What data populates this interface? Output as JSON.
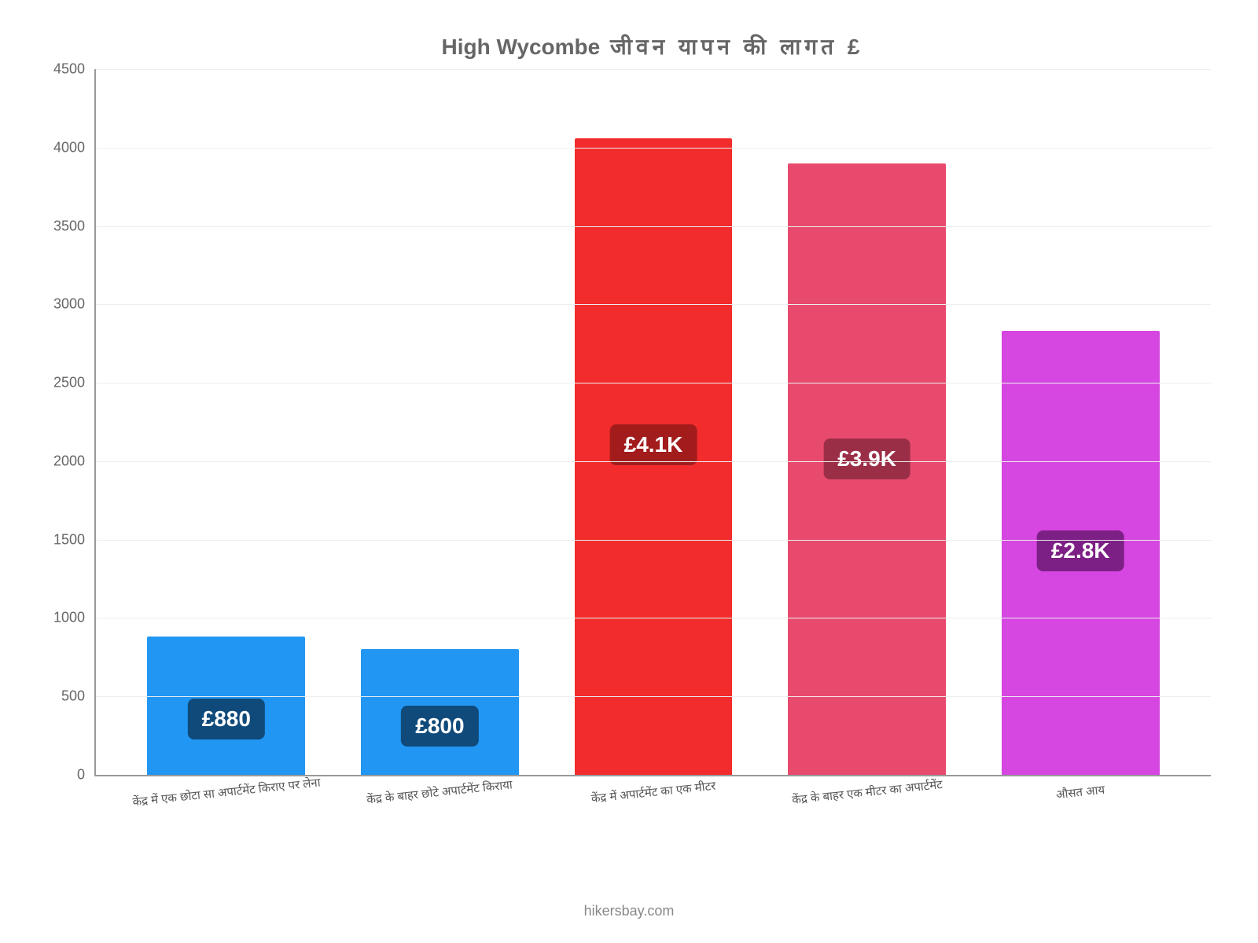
{
  "chart": {
    "type": "bar",
    "title_prefix": "High Wycombe",
    "title_rest": "जीवन   यापन   की   लागत   £",
    "title_fontsize": 28,
    "title_color": "#666666",
    "background_color": "#ffffff",
    "grid_color": "#eeeeee",
    "axis_color": "#999999",
    "ylim_min": 0,
    "ylim_max": 4500,
    "ytick_step": 500,
    "yticks": [
      "0",
      "500",
      "1000",
      "1500",
      "2000",
      "2500",
      "3000",
      "3500",
      "4000",
      "4500"
    ],
    "tick_fontsize": 18,
    "tick_color": "#666666",
    "xlabel_fontsize": 15,
    "xlabel_color": "#555555",
    "xlabel_rotate_deg": -6,
    "bar_width_pct": 74,
    "value_badge_fontsize": 28,
    "value_badge_radius": 8,
    "attribution": "hikersbay.com",
    "attribution_color": "#888888",
    "attribution_fontsize": 18,
    "bars": [
      {
        "category": "केंद्र में एक छोटा सा अपार्टमेंट किराए पर लेना",
        "value": 880,
        "value_label": "£880",
        "bar_color": "#2196f3",
        "badge_bg": "#0f4a7a",
        "badge_text": "#ffffff"
      },
      {
        "category": "केंद्र के बाहर छोटे अपार्टमेंट किराया",
        "value": 800,
        "value_label": "£800",
        "bar_color": "#2196f3",
        "badge_bg": "#0f4a7a",
        "badge_text": "#ffffff"
      },
      {
        "category": "केंद्र में अपार्टमेंट का एक मीटर",
        "value": 4060,
        "value_label": "£4.1K",
        "bar_color": "#f22c2c",
        "badge_bg": "#a31c1c",
        "badge_text": "#ffffff"
      },
      {
        "category": "केंद्र के बाहर एक मीटर का अपार्टमेंट",
        "value": 3900,
        "value_label": "£3.9K",
        "bar_color": "#e84a6d",
        "badge_bg": "#9b2e47",
        "badge_text": "#ffffff"
      },
      {
        "category": "औसत आय",
        "value": 2830,
        "value_label": "£2.8K",
        "bar_color": "#d646e0",
        "badge_bg": "#7d2085",
        "badge_text": "#ffffff"
      }
    ]
  }
}
